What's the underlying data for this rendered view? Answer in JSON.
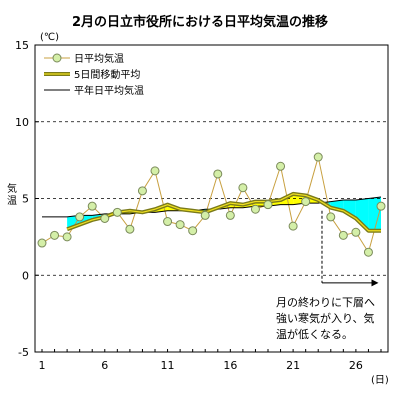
{
  "chart_data": {
    "type": "line",
    "title": "2月の日立市役所における日平均気温の推移",
    "y_unit": "(℃)",
    "ylabel": "気温",
    "x_unit": "(日)",
    "ylim": [
      -5,
      15
    ],
    "y_ticks": [
      "-5",
      "0",
      "5",
      "10",
      "15"
    ],
    "xlim": [
      1,
      28
    ],
    "x_ticks": [
      "1",
      "6",
      "11",
      "16",
      "21",
      "26"
    ],
    "x_tick_values": [
      1,
      6,
      11,
      16,
      21,
      26
    ],
    "grid": "dashed horizontal at 0, 5, 10",
    "legend_position": "top-left",
    "x": [
      1,
      2,
      3,
      4,
      5,
      6,
      7,
      8,
      9,
      10,
      11,
      12,
      13,
      14,
      15,
      16,
      17,
      18,
      19,
      20,
      21,
      22,
      23,
      24,
      25,
      26,
      27,
      28
    ],
    "series": [
      {
        "name": "日平均気温",
        "values": [
          2.1,
          2.6,
          2.5,
          3.8,
          4.5,
          3.7,
          4.1,
          3.0,
          5.5,
          6.8,
          3.5,
          3.3,
          2.9,
          3.9,
          6.6,
          3.9,
          5.7,
          4.3,
          4.6,
          7.1,
          3.2,
          4.8,
          7.7,
          3.8,
          2.6,
          2.8,
          1.5,
          4.5
        ]
      },
      {
        "name": "5日間移動平均",
        "values": [
          null,
          null,
          3.0,
          3.3,
          3.6,
          3.8,
          4.1,
          4.2,
          4.1,
          4.3,
          4.6,
          4.3,
          4.2,
          4.1,
          4.4,
          4.7,
          4.6,
          4.8,
          4.8,
          4.9,
          5.3,
          5.2,
          4.9,
          4.4,
          4.2,
          3.7,
          2.9,
          2.9
        ]
      },
      {
        "name": "平年日平均気温",
        "values": [
          3.8,
          3.8,
          3.8,
          3.9,
          3.9,
          4.0,
          4.0,
          4.0,
          4.1,
          4.1,
          4.2,
          4.2,
          4.2,
          4.3,
          4.3,
          4.4,
          4.4,
          4.5,
          4.5,
          4.6,
          4.6,
          4.7,
          4.7,
          4.8,
          4.9,
          4.9,
          5.0,
          5.1
        ]
      }
    ],
    "annotation": {
      "lines": [
        "月の終わりに下層へ",
        "強い寒気が入り、気",
        "温が低くなる。"
      ],
      "arrow_from_x": 23.3,
      "arrow_to_x": 27.8,
      "arrow_y": -0.5
    },
    "colors": {
      "daily_marker_fill": "#d4efa8",
      "daily_marker_stroke": "#7a8a5a",
      "daily_line": "#c8a040",
      "moving_avg": "#7a7a1a",
      "moving_avg_highlight": "#f0e020",
      "normal_line": "#000000",
      "fill_below_normal": "#00ffff",
      "fill_above_normal": "#ffff00"
    }
  }
}
